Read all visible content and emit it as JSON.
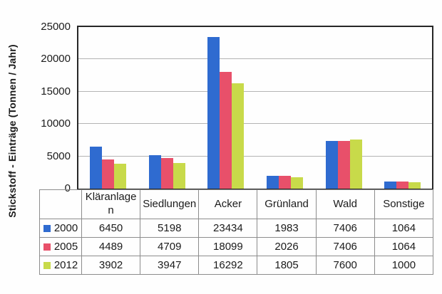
{
  "chart_data": {
    "type": "bar",
    "title": "",
    "ylabel": "Stickstoff - Einträge  (Tonnen / Jahr)",
    "xlabel": "",
    "ylim": [
      0,
      25000
    ],
    "ytick_step": 5000,
    "yticks": [
      0,
      5000,
      10000,
      15000,
      20000,
      25000
    ],
    "grid": true,
    "legend_position": "table-left",
    "categories": [
      "Kläranlagen",
      "Siedlungen",
      "Acker",
      "Grünland",
      "Wald",
      "Sonstige"
    ],
    "series": [
      {
        "name": "2000",
        "color": "#2f6bd0",
        "values": [
          6450,
          5198,
          23434,
          1983,
          7406,
          1064
        ]
      },
      {
        "name": "2005",
        "color": "#e8506a",
        "values": [
          4489,
          4709,
          18099,
          2026,
          7406,
          1064
        ]
      },
      {
        "name": "2012",
        "color": "#c8da4a",
        "values": [
          3902,
          3947,
          16292,
          1805,
          7600,
          1000
        ]
      }
    ],
    "colors": {
      "plot_border": "#262626",
      "gridline": "#b4b4b4",
      "table_border": "#8c8c8c",
      "text": "#1b1b1b"
    }
  }
}
